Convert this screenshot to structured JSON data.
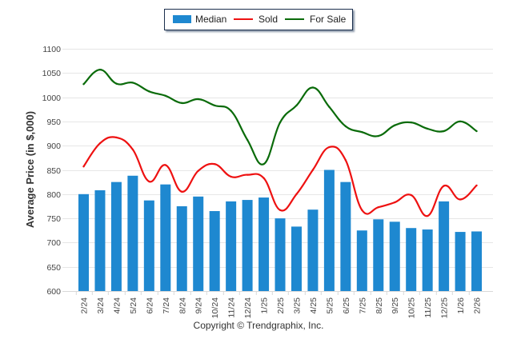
{
  "legend": {
    "items": [
      {
        "label": "Median",
        "type": "bar",
        "color": "#1e88d0"
      },
      {
        "label": "Sold",
        "type": "line",
        "color": "#ee1111"
      },
      {
        "label": "For Sale",
        "type": "line",
        "color": "#0a6b0a"
      }
    ]
  },
  "copyright": "Copyright © Trendgraphix, Inc.",
  "chart_data": {
    "type": "bar",
    "title": "",
    "xlabel": "",
    "ylabel": "Average Price (in $,000)",
    "ylim": [
      600,
      1100
    ],
    "yticks": [
      600,
      650,
      700,
      750,
      800,
      850,
      900,
      950,
      1000,
      1050,
      1100
    ],
    "grid": true,
    "legend_position": "top-center",
    "categories": [
      "2/24",
      "3/24",
      "4/24",
      "5/24",
      "6/24",
      "7/24",
      "8/24",
      "9/24",
      "10/24",
      "11/24",
      "12/24",
      "1/25",
      "2/25",
      "3/25",
      "4/25",
      "5/25",
      "6/25",
      "7/25",
      "8/25",
      "9/25",
      "10/25",
      "11/25",
      "12/25",
      "1/26",
      "2/26"
    ],
    "series": [
      {
        "name": "Median",
        "type": "bar",
        "color": "#1e88d0",
        "values": [
          800,
          808,
          825,
          838,
          787,
          820,
          775,
          795,
          765,
          785,
          788,
          793,
          750,
          733,
          768,
          850,
          825,
          725,
          748,
          743,
          730,
          727,
          785,
          722,
          723
        ]
      },
      {
        "name": "Sold",
        "type": "line",
        "color": "#ee1111",
        "values": [
          857,
          905,
          917,
          892,
          826,
          860,
          805,
          848,
          862,
          836,
          840,
          833,
          767,
          800,
          850,
          897,
          870,
          767,
          773,
          783,
          798,
          755,
          817,
          789,
          818
        ]
      },
      {
        "name": "For Sale",
        "type": "line",
        "color": "#0a6b0a",
        "values": [
          1027,
          1057,
          1028,
          1030,
          1012,
          1003,
          988,
          996,
          983,
          972,
          912,
          862,
          948,
          983,
          1020,
          980,
          940,
          928,
          920,
          942,
          948,
          935,
          930,
          950,
          930
        ]
      }
    ]
  }
}
